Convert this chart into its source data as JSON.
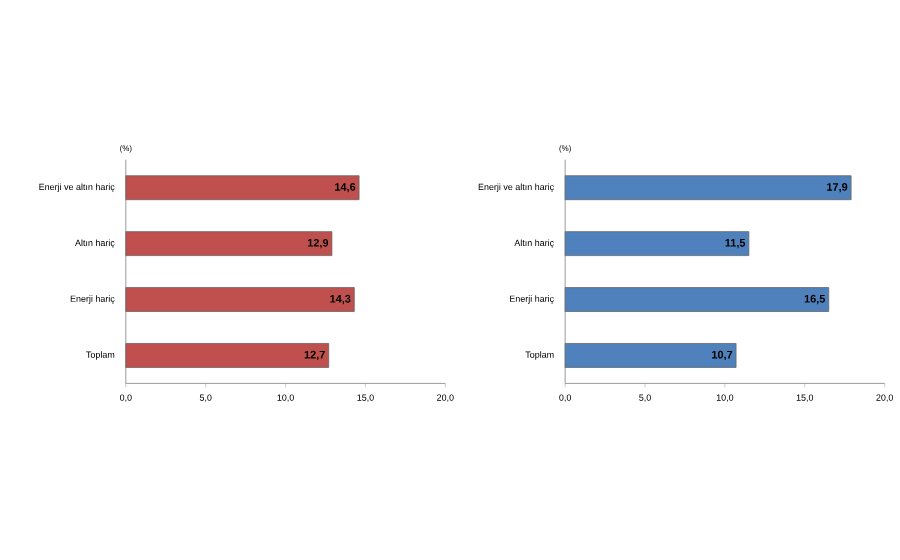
{
  "chart_data": [
    {
      "type": "bar",
      "orientation": "horizontal",
      "ylabel": "(%)",
      "categories": [
        "Enerji ve altın hariç",
        "Altın hariç",
        "Enerji hariç",
        "Toplam"
      ],
      "values": [
        14.6,
        12.9,
        14.3,
        12.7
      ],
      "color": "#c0504d",
      "value_labels": [
        "14,6",
        "12,9",
        "14,3",
        "12,7"
      ],
      "xlim": [
        0,
        20
      ],
      "xticks": [
        {
          "value": 0,
          "label": "0,0"
        },
        {
          "value": 5,
          "label": "5,0"
        },
        {
          "value": 10,
          "label": "10,0"
        },
        {
          "value": 15,
          "label": "15,0"
        },
        {
          "value": 20,
          "label": "20,0"
        }
      ]
    },
    {
      "type": "bar",
      "orientation": "horizontal",
      "ylabel": "(%)",
      "categories": [
        "Enerji ve altın hariç",
        "Altın hariç",
        "Enerji hariç",
        "Toplam"
      ],
      "values": [
        17.9,
        11.5,
        16.5,
        10.7
      ],
      "color": "#4f81bd",
      "value_labels": [
        "17,9",
        "11,5",
        "16,5",
        "10,7"
      ],
      "xlim": [
        0,
        20
      ],
      "xticks": [
        {
          "value": 0,
          "label": "0,0"
        },
        {
          "value": 5,
          "label": "5,0"
        },
        {
          "value": 10,
          "label": "10,0"
        },
        {
          "value": 15,
          "label": "15,0"
        },
        {
          "value": 20,
          "label": "20,0"
        }
      ]
    }
  ]
}
